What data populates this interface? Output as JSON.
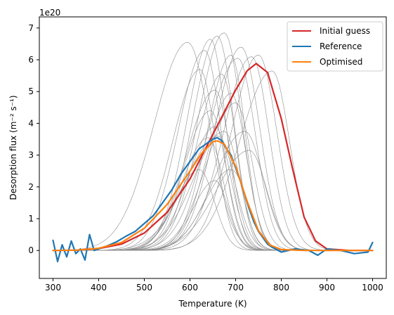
{
  "chart_data": {
    "type": "line",
    "xlabel": "Temperature (K)",
    "ylabel": "Desorption flux (m⁻² s⁻¹)",
    "offset_text": "1e20",
    "xlim": [
      270,
      1030
    ],
    "ylim": [
      -0.88,
      7.35
    ],
    "x_ticks": [
      300,
      400,
      500,
      600,
      700,
      800,
      900,
      1000
    ],
    "y_ticks": [
      0,
      1,
      2,
      3,
      4,
      5,
      6,
      7
    ],
    "legend_position": "top-right",
    "series": [
      {
        "name": "Initial guess",
        "color": "#d62728",
        "x": [
          300,
          350,
          400,
          450,
          500,
          550,
          600,
          650,
          700,
          725,
          745,
          770,
          800,
          825,
          850,
          875,
          900,
          950,
          1000
        ],
        "values": [
          0,
          0.01,
          0.06,
          0.2,
          0.55,
          1.2,
          2.25,
          3.65,
          5.05,
          5.65,
          5.88,
          5.6,
          4.15,
          2.55,
          1.05,
          0.3,
          0.05,
          0,
          0
        ]
      },
      {
        "name": "Reference",
        "color": "#1f77b4",
        "x": [
          300,
          310,
          320,
          330,
          340,
          350,
          360,
          370,
          380,
          390,
          400,
          420,
          440,
          460,
          480,
          500,
          520,
          540,
          560,
          580,
          600,
          620,
          640,
          650,
          660,
          670,
          680,
          690,
          700,
          710,
          720,
          730,
          740,
          750,
          760,
          770,
          780,
          800,
          830,
          860,
          880,
          900,
          930,
          960,
          990,
          1000
        ],
        "values": [
          0.32,
          -0.35,
          0.18,
          -0.2,
          0.3,
          -0.1,
          0.05,
          -0.3,
          0.5,
          0.0,
          0.05,
          0.15,
          0.28,
          0.45,
          0.6,
          0.85,
          1.1,
          1.5,
          1.9,
          2.4,
          2.8,
          3.2,
          3.4,
          3.5,
          3.55,
          3.45,
          3.2,
          3.0,
          2.6,
          2.2,
          1.75,
          1.3,
          0.9,
          0.6,
          0.4,
          0.2,
          0.1,
          -0.05,
          0.05,
          0.0,
          -0.15,
          0.05,
          0.0,
          -0.1,
          -0.05,
          0.25
        ]
      },
      {
        "name": "Optimised",
        "color": "#ff7f0e",
        "x": [
          300,
          350,
          400,
          450,
          500,
          550,
          600,
          625,
          650,
          660,
          675,
          700,
          725,
          750,
          775,
          800,
          850,
          900,
          1000
        ],
        "values": [
          0,
          0.01,
          0.07,
          0.25,
          0.7,
          1.45,
          2.5,
          3.05,
          3.42,
          3.45,
          3.35,
          2.65,
          1.55,
          0.62,
          0.17,
          0.03,
          0,
          0,
          0
        ]
      }
    ],
    "background_curves": [
      {
        "peak_x": 595,
        "peak_y": 6.55,
        "width_left": 155,
        "width_right": 100
      },
      {
        "peak_x": 622,
        "peak_y": 5.7,
        "width_left": 125,
        "width_right": 70
      },
      {
        "peak_x": 632,
        "peak_y": 6.3,
        "width_left": 120,
        "width_right": 75
      },
      {
        "peak_x": 645,
        "peak_y": 6.65,
        "width_left": 110,
        "width_right": 70
      },
      {
        "peak_x": 660,
        "peak_y": 6.75,
        "width_left": 115,
        "width_right": 75
      },
      {
        "peak_x": 675,
        "peak_y": 6.85,
        "width_left": 120,
        "width_right": 80
      },
      {
        "peak_x": 690,
        "peak_y": 6.15,
        "width_left": 110,
        "width_right": 65
      },
      {
        "peak_x": 705,
        "peak_y": 6.05,
        "width_left": 140,
        "width_right": 80
      },
      {
        "peak_x": 712,
        "peak_y": 6.4,
        "width_left": 120,
        "width_right": 85
      },
      {
        "peak_x": 735,
        "peak_y": 6.1,
        "width_left": 130,
        "width_right": 80
      },
      {
        "peak_x": 750,
        "peak_y": 6.15,
        "width_left": 125,
        "width_right": 85
      },
      {
        "peak_x": 780,
        "peak_y": 5.65,
        "width_left": 150,
        "width_right": 80
      },
      {
        "peak_x": 655,
        "peak_y": 5.05,
        "width_left": 130,
        "width_right": 70
      },
      {
        "peak_x": 670,
        "peak_y": 5.55,
        "width_left": 115,
        "width_right": 65
      },
      {
        "peak_x": 645,
        "peak_y": 4.4,
        "width_left": 120,
        "width_right": 70
      },
      {
        "peak_x": 655,
        "peak_y": 3.9,
        "width_left": 120,
        "width_right": 70
      },
      {
        "peak_x": 640,
        "peak_y": 3.55,
        "width_left": 120,
        "width_right": 70
      },
      {
        "peak_x": 662,
        "peak_y": 3.6,
        "width_left": 150,
        "width_right": 75
      },
      {
        "peak_x": 675,
        "peak_y": 3.75,
        "width_left": 140,
        "width_right": 70
      },
      {
        "peak_x": 690,
        "peak_y": 4.95,
        "width_left": 110,
        "width_right": 70
      },
      {
        "peak_x": 700,
        "peak_y": 4.65,
        "width_left": 130,
        "width_right": 75
      },
      {
        "peak_x": 720,
        "peak_y": 3.75,
        "width_left": 140,
        "width_right": 85
      },
      {
        "peak_x": 620,
        "peak_y": 2.55,
        "width_left": 110,
        "width_right": 70
      },
      {
        "peak_x": 655,
        "peak_y": 2.2,
        "width_left": 100,
        "width_right": 60
      },
      {
        "peak_x": 690,
        "peak_y": 2.55,
        "width_left": 120,
        "width_right": 75
      },
      {
        "peak_x": 730,
        "peak_y": 3.15,
        "width_left": 150,
        "width_right": 80
      }
    ]
  }
}
